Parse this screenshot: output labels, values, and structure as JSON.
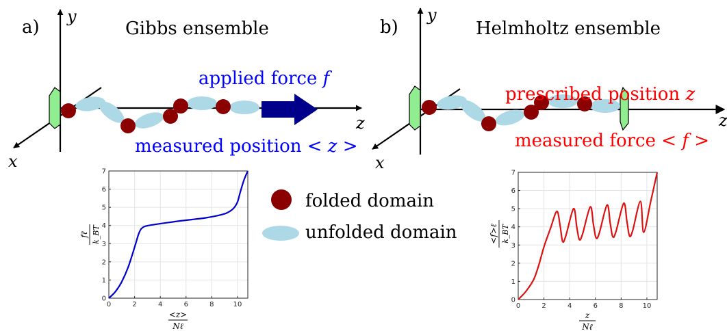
{
  "panel_a": {
    "label": "a)",
    "title": "Gibbs ensemble",
    "axis_x": "x",
    "axis_y": "y",
    "axis_z": "z",
    "force_prefix": "applied force ",
    "force_symbol": "f",
    "measured_prefix": "measured position ",
    "measured_symbol": "< z >"
  },
  "panel_b": {
    "label": "b)",
    "title": "Helmholtz ensemble",
    "axis_x": "x",
    "axis_y": "y",
    "axis_z": "z",
    "prescribed_prefix": "prescribed position ",
    "prescribed_symbol": "z",
    "measured_prefix": "measured force ",
    "measured_symbol": "< f >"
  },
  "legend": {
    "folded": "folded domain",
    "unfolded": "unfolded domain"
  },
  "colors": {
    "folded": "#8b0000",
    "unfolded": "#add8e6",
    "clamp": "#90ee90",
    "blue_text": "#0000ff",
    "red_text": "#ff0000",
    "arrow": "#00008b",
    "curve_a": "#0000cc",
    "curve_b": "#dd1111"
  },
  "chart_data": [
    {
      "type": "line",
      "xlabel_num": "<z>",
      "xlabel_den": "Nℓ",
      "ylabel_num": "fℓ",
      "ylabel_den": "k_BT",
      "xlim": [
        0,
        10.8
      ],
      "ylim": [
        0,
        7
      ],
      "xticks": [
        "0",
        "2",
        "4",
        "6",
        "8",
        "10"
      ],
      "yticks": [
        "0",
        "1",
        "2",
        "3",
        "4",
        "5",
        "6",
        "7"
      ],
      "grid": true,
      "x": [
        0,
        0.5,
        1.0,
        1.5,
        2.0,
        2.3,
        2.5,
        2.8,
        3.5,
        4.5,
        5.5,
        6.5,
        7.5,
        8.5,
        9.2,
        9.7,
        10.0,
        10.2,
        10.5,
        10.8
      ],
      "y": [
        0.0,
        0.35,
        0.9,
        1.7,
        2.8,
        3.5,
        3.8,
        3.95,
        4.05,
        4.15,
        4.25,
        4.33,
        4.42,
        4.55,
        4.7,
        4.95,
        5.3,
        5.8,
        6.5,
        7.0
      ]
    },
    {
      "type": "line",
      "xlabel_num": "z",
      "xlabel_den": "Nℓ",
      "ylabel_num": "<f>ℓ",
      "ylabel_den": "k_BT",
      "xlim": [
        0,
        10.8
      ],
      "ylim": [
        0,
        7
      ],
      "xticks": [
        "0",
        "2",
        "4",
        "6",
        "8",
        "10"
      ],
      "yticks": [
        "0",
        "1",
        "2",
        "3",
        "4",
        "5",
        "6",
        "7"
      ],
      "grid": true,
      "x": [
        0,
        0.6,
        1.2,
        1.6,
        2.0,
        2.5,
        3.0,
        3.25,
        3.45,
        3.7,
        4.3,
        4.55,
        4.75,
        5.0,
        5.6,
        5.85,
        6.05,
        6.3,
        6.9,
        7.15,
        7.35,
        7.6,
        8.2,
        8.45,
        8.65,
        8.9,
        9.5,
        9.75,
        10.3,
        10.8
      ],
      "y": [
        0.0,
        0.45,
        1.1,
        1.9,
        2.9,
        3.9,
        4.85,
        4.1,
        3.2,
        3.5,
        5.0,
        4.0,
        3.3,
        3.6,
        5.1,
        4.1,
        3.4,
        3.65,
        5.2,
        4.2,
        3.45,
        3.75,
        5.3,
        4.3,
        3.5,
        3.8,
        5.4,
        3.7,
        5.4,
        7.0
      ]
    }
  ]
}
